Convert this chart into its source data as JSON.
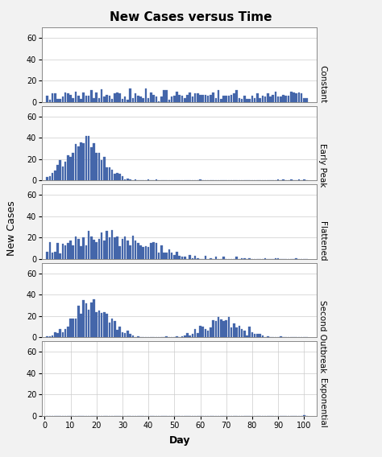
{
  "title": "New Cases versus Time",
  "xlabel": "Day",
  "ylabel": "New Cases",
  "panel_labels": [
    "Constant",
    "Early Peak",
    "Flattened",
    "Second Outbreak",
    "Exponential"
  ],
  "bar_color": "#4466aa",
  "bar_edge_color": "#4466aa",
  "background_color": "#f2f2f2",
  "plot_bg_color": "#ffffff",
  "ylim": [
    0,
    70
  ],
  "yticks": [
    0,
    20,
    40,
    60
  ],
  "xlim": [
    -1,
    105
  ],
  "xticks": [
    0,
    10,
    20,
    30,
    40,
    50,
    60,
    70,
    80,
    90,
    100
  ],
  "n_days": 101,
  "figsize": [
    4.74,
    5.68
  ],
  "dpi": 100
}
